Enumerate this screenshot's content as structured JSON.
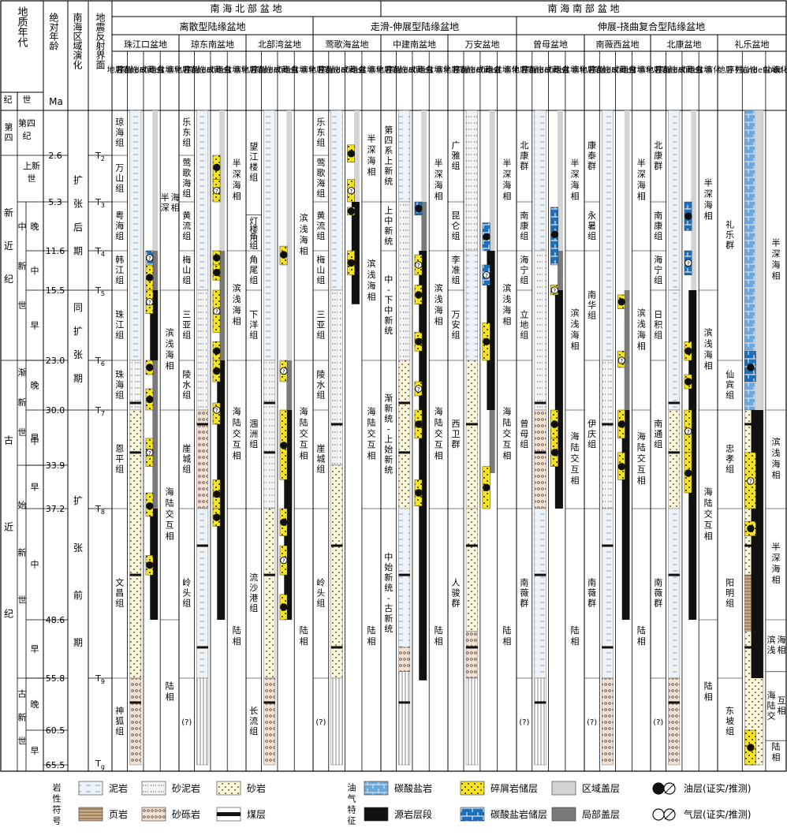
{
  "header": {
    "geologic_age": "地质年代",
    "absolute_age": "绝对年龄",
    "ma": "Ma",
    "regional_evolution": "南海区域演化",
    "seismic_interface": "地震反射界面",
    "period": "纪",
    "epoch": "世"
  },
  "regions": [
    {
      "name": "南 海 北 部 盆 地"
    },
    {
      "name": "南 海 南 部 盆 地"
    }
  ],
  "basin_types": [
    {
      "name": "离散型陆缘盆地"
    },
    {
      "name": "走滑-伸展型陆缘盆地"
    },
    {
      "name": "伸展-挠曲复合型陆缘盆地"
    }
  ],
  "basins": [
    {
      "name": "珠江口盆地"
    },
    {
      "name": "琼东南盆地"
    },
    {
      "name": "北部湾盆地"
    },
    {
      "name": "莺歌海盆地"
    },
    {
      "name": "中建南盆地"
    },
    {
      "name": "万安盆地"
    },
    {
      "name": "曾母盆地"
    },
    {
      "name": "南薇西盆地"
    },
    {
      "name": "北康盆地"
    },
    {
      "name": "礼乐盆地"
    }
  ],
  "column_headers": {
    "strat": "地层序列",
    "lith": "岩性柱",
    "combo": "成藏组合",
    "evol": "盆地演化"
  },
  "ages": [
    "2.6",
    "5.3",
    "11.6",
    "15.5",
    "23.0",
    "30.0",
    "33.9",
    "37.2",
    "48.6",
    "55.8",
    "60.5",
    "65.5"
  ],
  "time_units": {
    "quaternary": "第四纪",
    "neogene": "新近纪",
    "paleogene": "古近纪",
    "pliocene_upper": "上新世",
    "miocene": "中新世",
    "oligocene": "渐新世",
    "eocene": "始新世",
    "paleocene": "古新世",
    "late": "晚",
    "middle": "中",
    "early": "早"
  },
  "regional_stages": {
    "post": "扩张后期",
    "syn": "同扩张期",
    "pre": "扩张前期"
  },
  "seismic": [
    "T2",
    "T3",
    "T4",
    "T5",
    "T6",
    "T7",
    "T8",
    "T9",
    "Tg"
  ],
  "formations": {
    "zhujiang": [
      "琼海组",
      "万山组",
      "粤海组",
      "韩江组",
      "珠江组",
      "珠海组",
      "恩平组",
      "文昌组",
      "神狐组"
    ],
    "qiongdongnan": [
      "乐东组",
      "莺歌海组",
      "黄流组",
      "梅山组",
      "三亚组",
      "陵水组",
      "崖城组",
      "岭头组",
      "(?)"
    ],
    "beibuwan": [
      "望江楼组",
      "灯楼角组",
      "角尾组",
      "下洋组",
      "涠洲组",
      "流沙港组",
      "长流组"
    ],
    "yinggehai": [
      "乐东组",
      "莺歌海组",
      "黄流组",
      "梅山组",
      "三亚组",
      "陵水组",
      "崖城组",
      "岭头组",
      "(?)"
    ],
    "zhongjiannan": [
      "第四系上新统",
      "上中新统",
      "中-下中新统",
      "渐新统-上始新统",
      "中始新统-古新统"
    ],
    "wanan": [
      "广雅组",
      "昆仑组",
      "李准组",
      "万安组",
      "西卫群",
      "人骏群"
    ],
    "zengmu": [
      "北康群",
      "南康组",
      "海宁组",
      "立地组",
      "曾母组",
      "南薇群",
      "(?)"
    ],
    "nanweixi": [
      "康泰群",
      "永暑组",
      "南华组",
      "伊庆组",
      "南薇群",
      "(?)"
    ],
    "beikang": [
      "北康群",
      "南康组",
      "海宁组",
      "日积组",
      "南通组",
      "南薇群",
      "(?)"
    ],
    "liyue": [
      "礼乐群",
      "仙宾组",
      "忠孝组",
      "阳明组",
      "东坡组"
    ]
  },
  "evolution_labels": {
    "semi_deep": "半深海相",
    "littoral": "滨浅海相",
    "transitional": "海陆交互相",
    "continental": "陆相"
  },
  "legend": {
    "lith_title": "岩性符号",
    "hc_title": "油气特征",
    "mudstone": "泥岩",
    "sandy_mudstone": "砂泥岩",
    "sandstone": "砂岩",
    "shale": "页岩",
    "conglomerate": "砂砾岩",
    "coal": "煤层",
    "carbonate": "碳酸盐岩",
    "clastic_reservoir": "碎屑岩储层",
    "regional_seal": "区域盖层",
    "oil": "油层(证实/推测)",
    "source_rock": "源岩层段",
    "carbonate_reservoir": "碳酸盐岩储层",
    "local_seal": "局部盖层",
    "gas": "气层(证实/推测)"
  },
  "colors": {
    "mud_fill": "#eef3f8",
    "sand_fill": "#fbf6d8",
    "conglomerate_fill": "#f6e2d2",
    "carbonate": "#6ea8d8",
    "carbonate_reservoir": "#1f6fb8",
    "clastic_reservoir": "#f7e41c",
    "source_rock": "#111111",
    "regional_seal": "#d4d4d4",
    "local_seal": "#7a7a7a"
  }
}
